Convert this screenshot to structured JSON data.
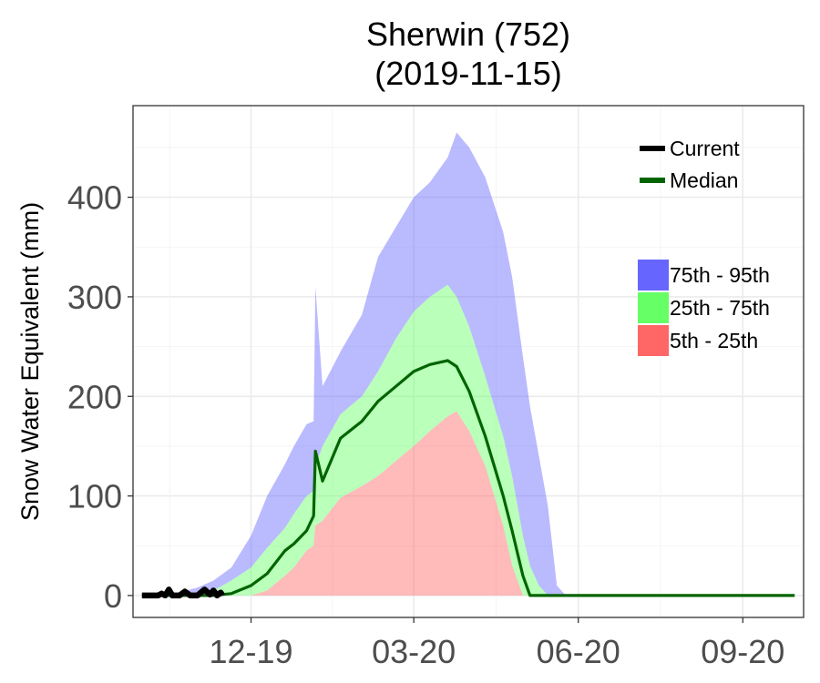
{
  "chart_data": {
    "type": "area",
    "title": "Sherwin (752)",
    "subtitle": "(2019-11-15)",
    "xlabel": "",
    "ylabel": "Snow Water Equivalent (mm)",
    "x_ticks": [
      "12-19",
      "03-20",
      "06-20",
      "09-20"
    ],
    "y_ticks": [
      0,
      100,
      200,
      300,
      400
    ],
    "ylim": [
      -22,
      492
    ],
    "grid": true,
    "legend_lines": [
      {
        "name": "Current",
        "color": "#000000"
      },
      {
        "name": "Median",
        "color": "#006400"
      }
    ],
    "legend_bands": [
      {
        "name": "75th - 95th",
        "color": "#6666ff"
      },
      {
        "name": "25th - 75th",
        "color": "#66ff66"
      },
      {
        "name": "5th - 25th",
        "color": "#ff6666"
      }
    ],
    "x_dates": [
      "10-01",
      "10-15",
      "11-01",
      "11-10",
      "11-20",
      "12-01",
      "12-10",
      "12-20",
      "12-25",
      "01-01",
      "01-05",
      "01-06",
      "01-10",
      "01-20",
      "02-01",
      "02-10",
      "02-20",
      "03-01",
      "03-10",
      "03-20",
      "03-25",
      "04-01",
      "04-10",
      "04-20",
      "04-25",
      "05-01",
      "05-05",
      "05-10",
      "05-15",
      "05-20",
      "05-25",
      "06-01",
      "06-10",
      "07-01",
      "08-01",
      "09-01",
      "09-20",
      "09-30"
    ],
    "p95": [
      0,
      0,
      8,
      15,
      28,
      60,
      100,
      132,
      150,
      172,
      175,
      310,
      210,
      245,
      282,
      340,
      370,
      400,
      415,
      440,
      465,
      450,
      420,
      365,
      320,
      240,
      190,
      140,
      90,
      10,
      0,
      0,
      0,
      0,
      0,
      0,
      0,
      0
    ],
    "p75": [
      0,
      0,
      0,
      5,
      15,
      28,
      48,
      68,
      82,
      100,
      105,
      130,
      150,
      182,
      200,
      225,
      258,
      285,
      300,
      312,
      300,
      270,
      220,
      160,
      120,
      60,
      30,
      10,
      0,
      0,
      0,
      0,
      0,
      0,
      0,
      0,
      0,
      0
    ],
    "p25": [
      0,
      0,
      0,
      0,
      0,
      0,
      5,
      20,
      28,
      45,
      50,
      70,
      75,
      98,
      110,
      120,
      135,
      150,
      165,
      180,
      185,
      165,
      130,
      70,
      30,
      0,
      0,
      0,
      0,
      0,
      0,
      0,
      0,
      0,
      0,
      0,
      0,
      0
    ],
    "p5": [
      0,
      0,
      0,
      0,
      0,
      0,
      0,
      0,
      0,
      0,
      0,
      0,
      0,
      0,
      0,
      0,
      0,
      0,
      0,
      0,
      0,
      0,
      0,
      0,
      0,
      0,
      0,
      0,
      0,
      0,
      0,
      0,
      0,
      0,
      0,
      0,
      0,
      0
    ],
    "median": [
      0,
      0,
      0,
      0,
      2,
      10,
      22,
      45,
      52,
      65,
      80,
      145,
      115,
      158,
      175,
      195,
      210,
      225,
      232,
      236,
      230,
      205,
      160,
      100,
      65,
      20,
      0,
      0,
      0,
      0,
      0,
      0,
      0,
      0,
      0,
      0,
      0,
      0
    ],
    "current": {
      "x": [
        "10-01",
        "10-10",
        "10-12",
        "10-14",
        "10-16",
        "10-18",
        "10-22",
        "10-25",
        "10-28",
        "11-01",
        "11-05",
        "11-08",
        "11-10",
        "11-12",
        "11-14",
        "11-15"
      ],
      "y": [
        0,
        0,
        2,
        0,
        6,
        0,
        0,
        4,
        0,
        0,
        6,
        1,
        5,
        0,
        3,
        0
      ]
    }
  }
}
